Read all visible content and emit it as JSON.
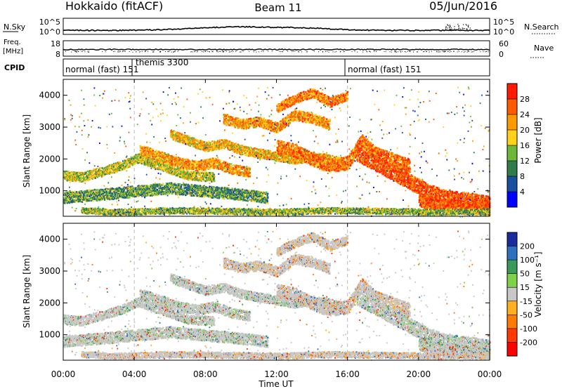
{
  "header": {
    "station": "Hokkaido (fitACF)",
    "beam": "Beam 11",
    "date": "05/Jun/2016"
  },
  "strip_panels": {
    "nsky": {
      "label": "N.Sky",
      "left_ticks": [
        "10^5",
        "10^0"
      ],
      "right_ticks": [
        "10^5",
        "10^0"
      ],
      "right_label": "N.Search"
    },
    "freq": {
      "label_line1": "Freq.",
      "label_line2": "[MHz]",
      "left_ticks": [
        "18",
        "8"
      ],
      "right_ticks": [
        "60",
        "0"
      ],
      "right_label": "Nave"
    },
    "cpid": {
      "label": "CPID",
      "segments": [
        {
          "text": "normal (fast) 151",
          "start_h": 0
        },
        {
          "text": "themis 3300",
          "start_h": 4.0
        },
        {
          "text": "normal (fast) 151",
          "start_h": 16.0
        }
      ]
    }
  },
  "chart_data": [
    {
      "type": "heatmap",
      "name": "power",
      "ylabel": "Slant Range [km]",
      "yticks": [
        "1000",
        "2000",
        "3000",
        "4000"
      ],
      "ylim": [
        200,
        4500
      ],
      "colorbar": {
        "title": "Power [dB]",
        "labels": [
          "4",
          "8",
          "12",
          "16",
          "20",
          "24",
          "28"
        ],
        "colors": [
          "#0000ff",
          "#1a4fa0",
          "#2e7d4a",
          "#6db83a",
          "#ffd21a",
          "#ff9900",
          "#ff5a00",
          "#ff1a00"
        ]
      }
    },
    {
      "type": "heatmap",
      "name": "velocity",
      "ylabel": "Slant Range [km]",
      "yticks": [
        "1000",
        "2000",
        "3000",
        "4000"
      ],
      "ylim": [
        200,
        4500
      ],
      "colorbar": {
        "title": "Velocity [m s⁻¹]",
        "labels": [
          "200",
          "100",
          "50",
          "15",
          "-15",
          "-50",
          "-100",
          "-200"
        ],
        "colors": [
          "#1a2ba0",
          "#2f6fbf",
          "#3a9a5a",
          "#7ed24a",
          "#c8c8c8",
          "#ffb020",
          "#ff7a00",
          "#ff3a00",
          "#ff0000"
        ]
      }
    }
  ],
  "x_axis": {
    "label": "Time UT",
    "ticks": [
      "00:00",
      "04:00",
      "08:00",
      "12:00",
      "16:00",
      "20:00",
      "00:00"
    ],
    "range_hours": [
      0,
      24
    ]
  }
}
